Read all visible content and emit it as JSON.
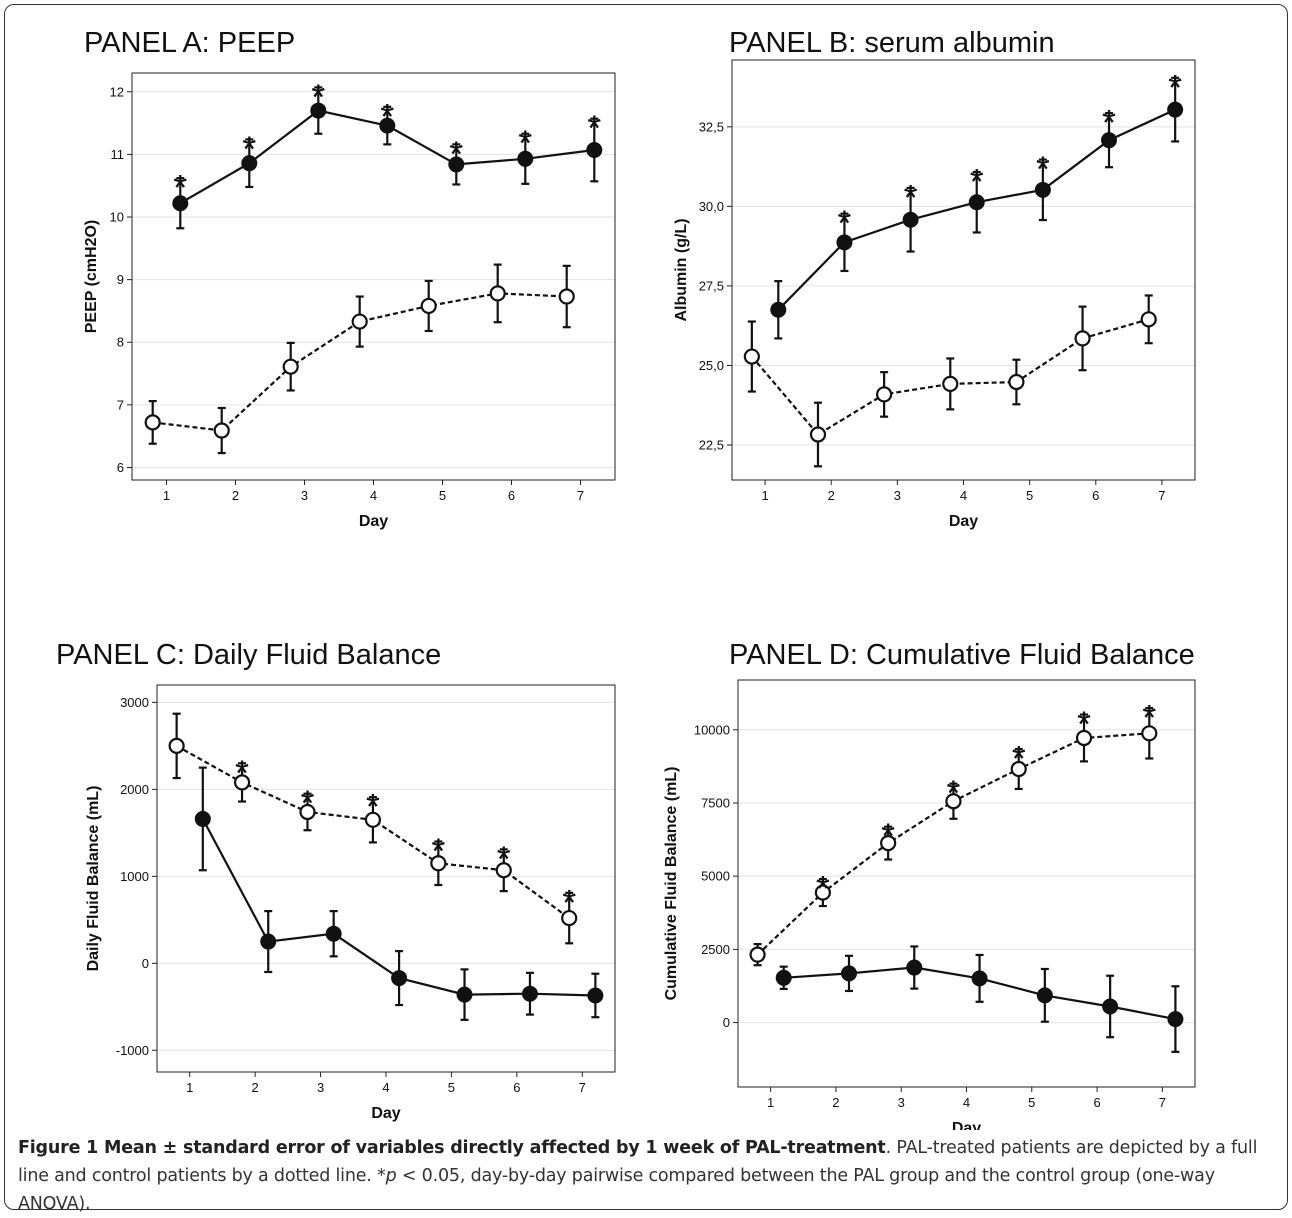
{
  "chart_data": [
    {
      "type": "line",
      "title": "PANEL A: PEEP",
      "xlabel": "Day",
      "ylabel": "PEEP (cmH2O)",
      "xlim": [
        0.5,
        7.5
      ],
      "ylim": [
        5.8,
        12.3
      ],
      "xticks": [
        1,
        2,
        3,
        4,
        5,
        6,
        7
      ],
      "yticks": [
        6,
        7,
        8,
        9,
        10,
        11,
        12
      ],
      "tick_labels_y": [
        "6",
        "7",
        "8",
        "9",
        "10",
        "11",
        "12"
      ],
      "grid": "horizontal",
      "series": [
        {
          "style": "solid",
          "marker": "filled",
          "x": [
            1.2,
            2.2,
            3.2,
            4.2,
            5.2,
            6.2,
            7.2
          ],
          "y": [
            10.22,
            10.86,
            11.7,
            11.46,
            10.84,
            10.93,
            11.07
          ],
          "yerr": [
            0.4,
            0.38,
            0.37,
            0.3,
            0.32,
            0.4,
            0.5
          ],
          "stars": [
            1,
            1,
            1,
            1,
            1,
            1,
            1
          ]
        },
        {
          "style": "dashed",
          "marker": "open",
          "x": [
            0.8,
            1.8,
            2.8,
            3.8,
            4.8,
            5.8,
            6.8
          ],
          "y": [
            6.72,
            6.59,
            7.61,
            8.33,
            8.58,
            8.78,
            8.73
          ],
          "yerr": [
            0.34,
            0.36,
            0.38,
            0.4,
            0.4,
            0.46,
            0.49
          ],
          "stars": [
            0,
            0,
            0,
            0,
            0,
            0,
            0
          ]
        }
      ]
    },
    {
      "type": "line",
      "title": "PANEL B: serum albumin",
      "xlabel": "Day",
      "ylabel": "Albumin (g/L)",
      "xlim": [
        0.5,
        7.5
      ],
      "ylim": [
        21.4,
        34.6
      ],
      "xticks": [
        1,
        2,
        3,
        4,
        5,
        6,
        7
      ],
      "yticks": [
        22.5,
        25.0,
        27.5,
        30.0,
        32.5
      ],
      "tick_labels_y": [
        "22,5",
        "25,0",
        "27,5",
        "30,0",
        "32,5"
      ],
      "grid": "horizontal",
      "series": [
        {
          "style": "solid",
          "marker": "filled",
          "x": [
            1.2,
            2.2,
            3.2,
            4.2,
            5.2,
            6.2,
            7.2
          ],
          "y": [
            26.75,
            28.87,
            29.58,
            30.13,
            30.52,
            32.08,
            33.04
          ],
          "yerr": [
            0.9,
            0.9,
            1.0,
            0.95,
            0.95,
            0.85,
            1.0
          ],
          "stars": [
            0,
            1,
            1,
            1,
            1,
            1,
            1
          ]
        },
        {
          "style": "dashed",
          "marker": "open",
          "x": [
            0.8,
            1.8,
            2.8,
            3.8,
            4.8,
            5.8,
            6.8
          ],
          "y": [
            25.28,
            22.83,
            24.09,
            24.42,
            24.48,
            25.85,
            26.45
          ],
          "yerr": [
            1.1,
            1.0,
            0.7,
            0.8,
            0.7,
            1.0,
            0.75
          ],
          "stars": [
            0,
            0,
            0,
            0,
            0,
            0,
            0
          ]
        }
      ]
    },
    {
      "type": "line",
      "title": "PANEL C: Daily Fluid Balance",
      "xlabel": "Day",
      "ylabel": "Daily Fluid Balance (mL)",
      "xlim": [
        0.5,
        7.5
      ],
      "ylim": [
        -1250,
        3200
      ],
      "xticks": [
        1,
        2,
        3,
        4,
        5,
        6,
        7
      ],
      "yticks": [
        -1000,
        0,
        1000,
        2000,
        3000
      ],
      "tick_labels_y": [
        "-1000",
        "0",
        "1000",
        "2000",
        "3000"
      ],
      "grid": "horizontal",
      "series": [
        {
          "style": "solid",
          "marker": "filled",
          "x": [
            1.2,
            2.2,
            3.2,
            4.2,
            5.2,
            6.2,
            7.2
          ],
          "y": [
            1660,
            250,
            340,
            -170,
            -360,
            -350,
            -370
          ],
          "yerr": [
            590,
            350,
            260,
            310,
            290,
            240,
            250
          ],
          "stars": [
            0,
            0,
            0,
            0,
            0,
            0,
            0
          ]
        },
        {
          "style": "dashed",
          "marker": "open",
          "x": [
            0.8,
            1.8,
            2.8,
            3.8,
            4.8,
            5.8,
            6.8
          ],
          "y": [
            2500,
            2080,
            1740,
            1650,
            1150,
            1070,
            520
          ],
          "yerr": [
            370,
            220,
            210,
            260,
            250,
            240,
            290
          ],
          "stars": [
            0,
            1,
            1,
            1,
            1,
            1,
            1
          ]
        }
      ]
    },
    {
      "type": "line",
      "title": "PANEL D: Cumulative Fluid Balance",
      "xlabel": "Day",
      "ylabel": "Cumulative Fluid Balance (mL)",
      "xlim": [
        0.5,
        7.5
      ],
      "ylim": [
        -2200,
        11700
      ],
      "xticks": [
        1,
        2,
        3,
        4,
        5,
        6,
        7
      ],
      "yticks": [
        0,
        2500,
        5000,
        7500,
        10000
      ],
      "tick_labels_y": [
        "0",
        "2500",
        "5000",
        "7500",
        "10000"
      ],
      "grid": "horizontal",
      "series": [
        {
          "style": "solid",
          "marker": "filled",
          "x": [
            1.2,
            2.2,
            3.2,
            4.2,
            5.2,
            6.2,
            7.2
          ],
          "y": [
            1530,
            1680,
            1880,
            1510,
            930,
            550,
            120
          ],
          "yerr": [
            380,
            600,
            720,
            800,
            900,
            1050,
            1120
          ],
          "stars": [
            0,
            0,
            0,
            0,
            0,
            0,
            0
          ]
        },
        {
          "style": "dashed",
          "marker": "open",
          "x": [
            0.8,
            1.8,
            2.8,
            3.8,
            4.8,
            5.8,
            6.8
          ],
          "y": [
            2320,
            4440,
            6130,
            7560,
            8660,
            9720,
            9880
          ],
          "yerr": [
            360,
            460,
            560,
            600,
            680,
            800,
            860
          ],
          "stars": [
            0,
            1,
            1,
            1,
            1,
            1,
            1
          ]
        }
      ]
    }
  ],
  "caption": {
    "bold": "Figure 1 Mean ± standard error of variables directly affected by 1 week of PAL-treatment",
    "part1": ". PAL-treated patients are depicted by a full line and control patients by a dotted line. *",
    "p": "p",
    "part2": " < 0.05, day-by-day pairwise compared between the PAL group and the control group (one-way ANOVA)."
  }
}
